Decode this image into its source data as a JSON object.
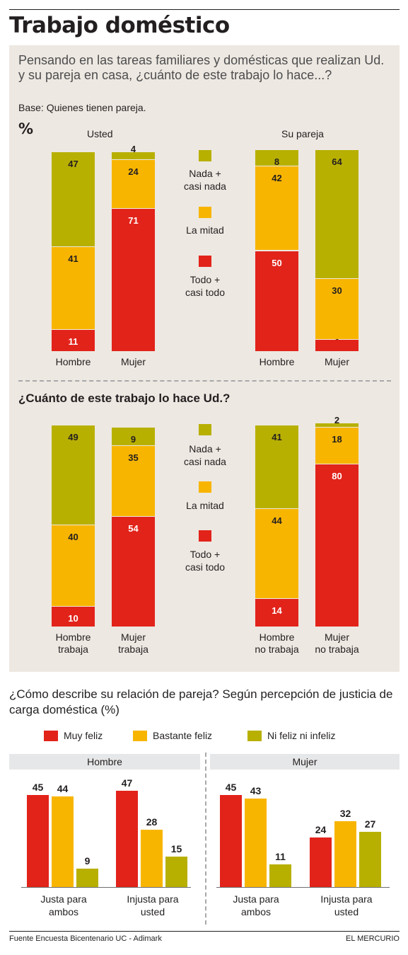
{
  "title": "Trabajo doméstico",
  "intro": {
    "question": "Pensando en las tareas familiares y domésticas que realizan Ud. y su pareja en casa, ¿cuánto de este trabajo lo hace...?",
    "base": "Base: Quienes tienen pareja.",
    "unit": "%"
  },
  "section2_question": "¿Cuánto de este trabajo lo hace Ud.?",
  "legend": {
    "nada": [
      "Nada +",
      "casi nada"
    ],
    "mitad": "La mitad",
    "todo": [
      "Todo +",
      "casi todo"
    ]
  },
  "colors": {
    "green": "#b8b000",
    "amber": "#f8b500",
    "red": "#e2231a",
    "panel": "#ede8e1"
  },
  "chart_data": [
    {
      "type": "bar",
      "stacked": true,
      "group_labels": [
        "Usted",
        "Su pareja"
      ],
      "categories": [
        "Hombre",
        "Mujer",
        "Hombre",
        "Mujer"
      ],
      "series": [
        {
          "name": "Todo + casi todo",
          "values": [
            11,
            71,
            50,
            6
          ]
        },
        {
          "name": "La mitad",
          "values": [
            41,
            24,
            42,
            30
          ]
        },
        {
          "name": "Nada + casi nada",
          "values": [
            47,
            4,
            8,
            64
          ]
        }
      ],
      "ylim": [
        0,
        100
      ]
    },
    {
      "type": "bar",
      "stacked": true,
      "categories": [
        "Hombre trabaja",
        "Mujer trabaja",
        "Hombre no trabaja",
        "Mujer no trabaja"
      ],
      "category_lines": [
        [
          "Hombre",
          "trabaja"
        ],
        [
          "Mujer",
          "trabaja"
        ],
        [
          "Hombre",
          "no trabaja"
        ],
        [
          "Mujer",
          "no trabaja"
        ]
      ],
      "series": [
        {
          "name": "Todo + casi todo",
          "values": [
            10,
            54,
            14,
            80
          ]
        },
        {
          "name": "La mitad",
          "values": [
            40,
            35,
            44,
            18
          ]
        },
        {
          "name": "Nada + casi nada",
          "values": [
            49,
            9,
            41,
            2
          ]
        }
      ],
      "ylim": [
        0,
        100
      ]
    },
    {
      "type": "bar",
      "title": "¿Cómo describe su relación de pareja? Según percepción de justicia de carga doméstica (%)",
      "panels": [
        {
          "name": "Hombre",
          "categories": [
            "Justa para ambos",
            "Injusta para usted"
          ],
          "category_lines": [
            [
              "Justa para",
              "ambos"
            ],
            [
              "Injusta para",
              "usted"
            ]
          ],
          "series": [
            {
              "name": "Muy feliz",
              "values": [
                45,
                47
              ]
            },
            {
              "name": "Bastante feliz",
              "values": [
                44,
                28
              ]
            },
            {
              "name": "Ni feliz ni infeliz",
              "values": [
                9,
                15
              ]
            }
          ]
        },
        {
          "name": "Mujer",
          "categories": [
            "Justa para ambos",
            "Injusta para usted"
          ],
          "category_lines": [
            [
              "Justa para",
              "ambos"
            ],
            [
              "Injusta para",
              "usted"
            ]
          ],
          "series": [
            {
              "name": "Muy feliz",
              "values": [
                45,
                24
              ]
            },
            {
              "name": "Bastante feliz",
              "values": [
                43,
                32
              ]
            },
            {
              "name": "Ni feliz ni infeliz",
              "values": [
                11,
                27
              ]
            }
          ]
        }
      ],
      "legend": [
        "Muy feliz",
        "Bastante feliz",
        "Ni feliz ni infeliz"
      ]
    }
  ],
  "footer": {
    "source": "Fuente  Encuesta Bicentenario UC - Adimark",
    "brand": "EL MERCURIO"
  }
}
